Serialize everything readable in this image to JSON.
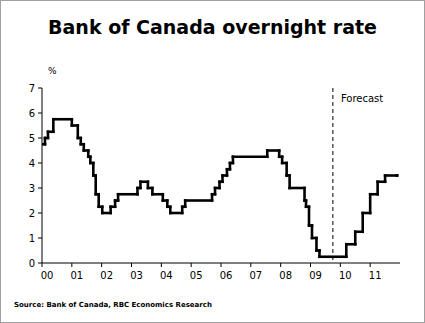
{
  "chart_data": {
    "type": "line",
    "title": "Bank of Canada overnight rate",
    "y_label": "%",
    "source": "Source: Bank of Canada, RBC Economics Research",
    "x": [
      2000.0,
      2000.1,
      2000.2,
      2000.38,
      2001.0,
      2001.2,
      2001.3,
      2001.4,
      2001.55,
      2001.62,
      2001.72,
      2001.8,
      2001.9,
      2002.02,
      2002.3,
      2002.45,
      2002.55,
      2003.2,
      2003.3,
      2003.55,
      2003.7,
      2004.05,
      2004.2,
      2004.3,
      2004.7,
      2004.8,
      2005.7,
      2005.8,
      2005.95,
      2006.05,
      2006.2,
      2006.3,
      2006.4,
      2007.55,
      2007.95,
      2008.05,
      2008.2,
      2008.3,
      2008.8,
      2008.85,
      2008.95,
      2009.05,
      2009.2,
      2009.3,
      2010.2,
      2010.5,
      2010.75,
      2011.0,
      2011.25,
      2011.5,
      2011.9
    ],
    "series": [
      {
        "name": "Overnight rate",
        "color": "#000000",
        "line_style": "step",
        "values": [
          4.75,
          5.0,
          5.25,
          5.75,
          5.5,
          5.0,
          4.75,
          4.5,
          4.25,
          4.0,
          3.5,
          2.75,
          2.25,
          2.0,
          2.25,
          2.5,
          2.75,
          3.0,
          3.25,
          3.0,
          2.75,
          2.5,
          2.25,
          2.0,
          2.25,
          2.5,
          2.75,
          3.0,
          3.25,
          3.5,
          3.75,
          4.0,
          4.25,
          4.5,
          4.25,
          4.0,
          3.5,
          3.0,
          2.5,
          2.25,
          1.5,
          1.0,
          0.5,
          0.25,
          0.75,
          1.25,
          2.0,
          2.75,
          3.25,
          3.5,
          3.5
        ]
      }
    ],
    "xlim": [
      2000,
      2012
    ],
    "xticks": [
      {
        "value": 2000,
        "label": "00"
      },
      {
        "value": 2001,
        "label": "01"
      },
      {
        "value": 2002,
        "label": "02"
      },
      {
        "value": 2003,
        "label": "03"
      },
      {
        "value": 2004,
        "label": "04"
      },
      {
        "value": 2005,
        "label": "05"
      },
      {
        "value": 2006,
        "label": "06"
      },
      {
        "value": 2007,
        "label": "07"
      },
      {
        "value": 2008,
        "label": "08"
      },
      {
        "value": 2009,
        "label": "09"
      },
      {
        "value": 2010,
        "label": "10"
      },
      {
        "value": 2011,
        "label": "11"
      }
    ],
    "ylim": [
      0,
      7
    ],
    "yticks": [
      0,
      1,
      2,
      3,
      4,
      5,
      6,
      7
    ],
    "grid": false,
    "annotations": [
      {
        "text": "Forecast",
        "x": 2009.75
      }
    ]
  }
}
